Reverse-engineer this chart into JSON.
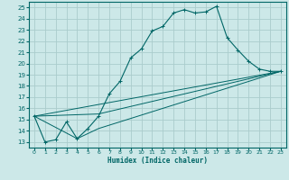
{
  "xlabel": "Humidex (Indice chaleur)",
  "background_color": "#cce8e8",
  "grid_color": "#aacccc",
  "line_color": "#006666",
  "xlim": [
    -0.5,
    23.5
  ],
  "ylim": [
    12.5,
    25.5
  ],
  "xticks": [
    0,
    1,
    2,
    3,
    4,
    5,
    6,
    7,
    8,
    9,
    10,
    11,
    12,
    13,
    14,
    15,
    16,
    17,
    18,
    19,
    20,
    21,
    22,
    23
  ],
  "yticks": [
    13,
    14,
    15,
    16,
    17,
    18,
    19,
    20,
    21,
    22,
    23,
    24,
    25
  ],
  "main_series": {
    "x": [
      0,
      1,
      2,
      3,
      4,
      5,
      6,
      7,
      8,
      9,
      10,
      11,
      12,
      13,
      14,
      15,
      16,
      17,
      18,
      19,
      20,
      21,
      22,
      23
    ],
    "y": [
      15.3,
      13.0,
      13.2,
      14.8,
      13.3,
      14.2,
      15.3,
      17.3,
      18.4,
      20.5,
      21.3,
      22.9,
      23.3,
      24.5,
      24.8,
      24.5,
      24.6,
      25.1,
      22.3,
      21.2,
      20.2,
      19.5,
      19.3,
      19.3
    ]
  },
  "extra_series": [
    {
      "x": [
        0,
        6,
        23
      ],
      "y": [
        15.3,
        15.5,
        19.3
      ]
    },
    {
      "x": [
        0,
        23
      ],
      "y": [
        15.3,
        19.3
      ]
    },
    {
      "x": [
        0,
        4,
        6,
        23
      ],
      "y": [
        15.3,
        13.3,
        14.2,
        19.3
      ]
    }
  ]
}
